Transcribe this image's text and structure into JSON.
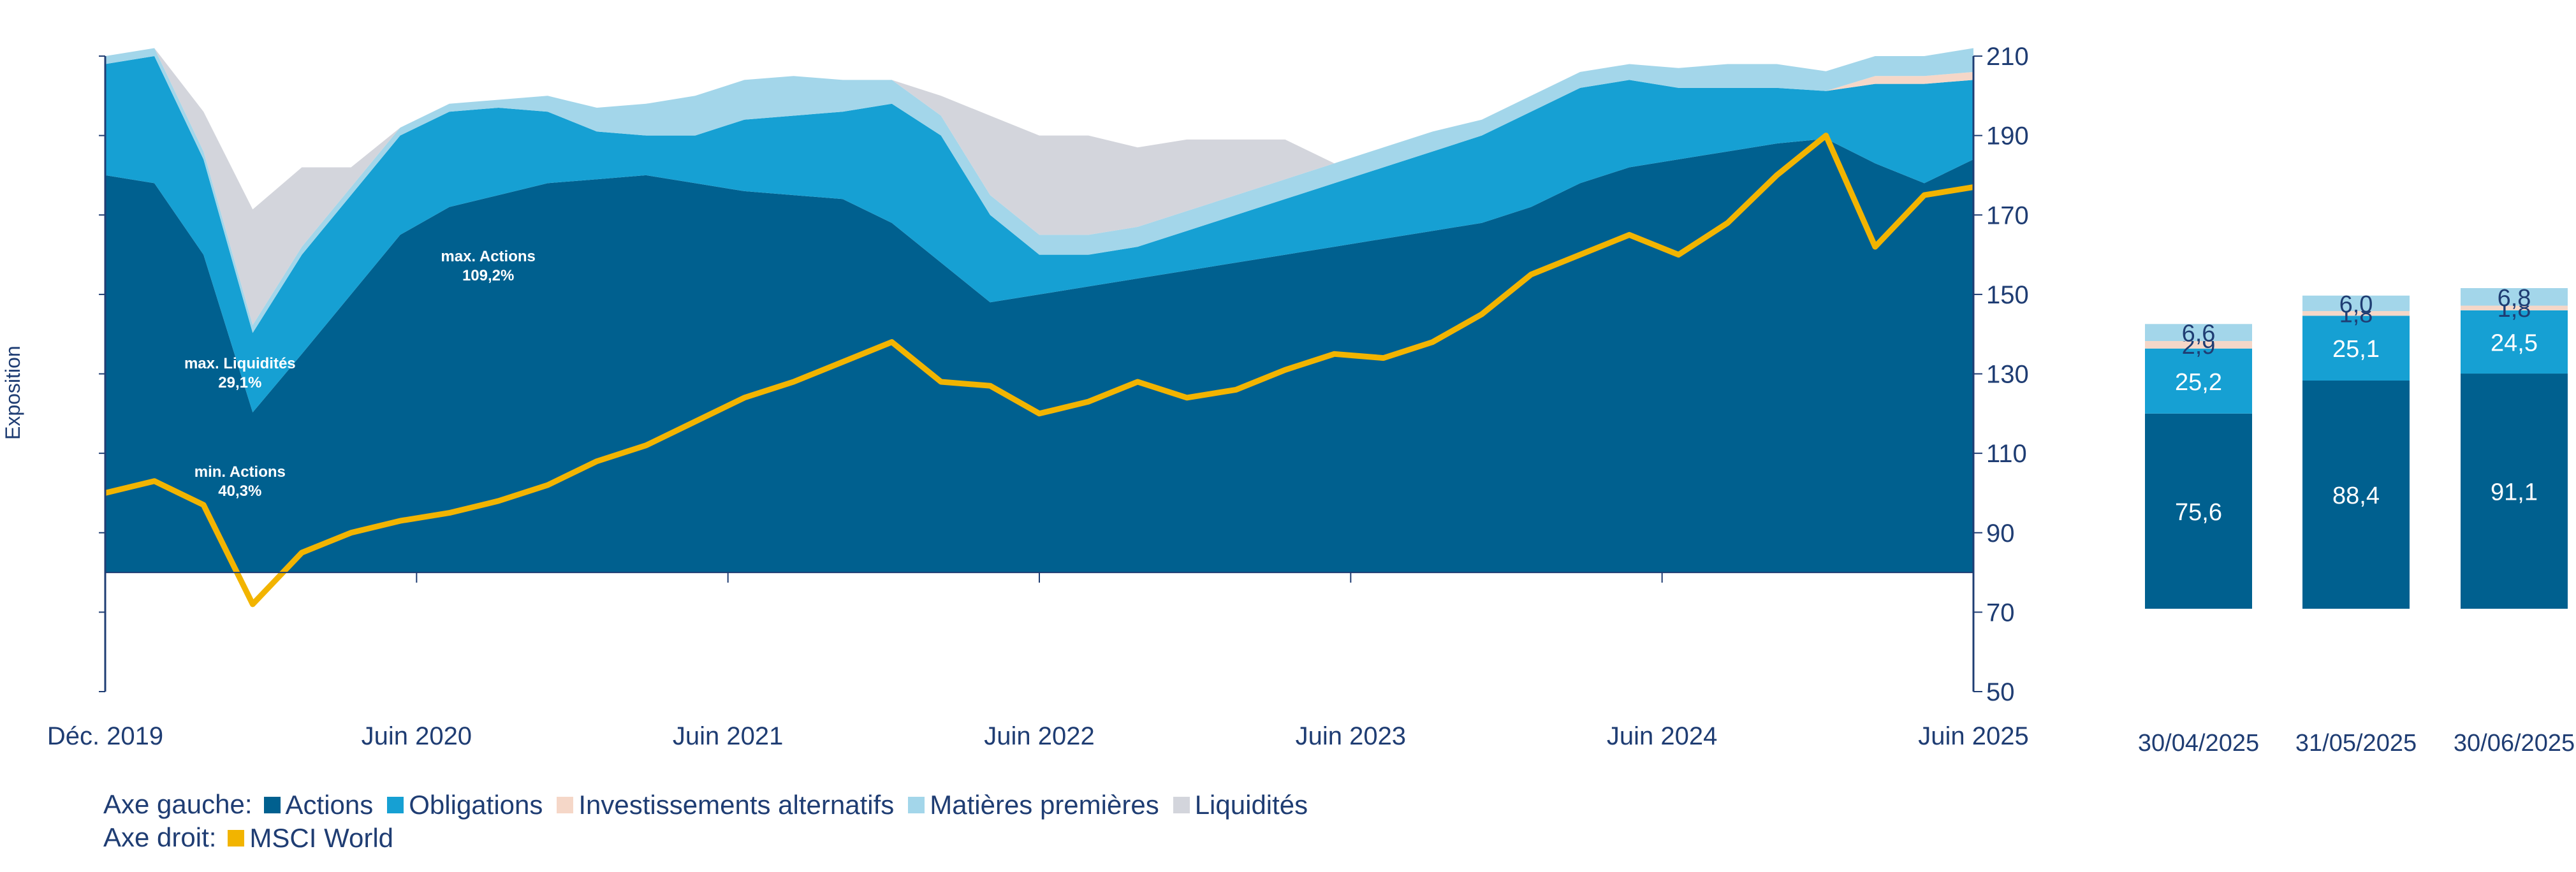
{
  "colors": {
    "actions": "#00608f",
    "obligations": "#16a0d3",
    "alternatifs": "#f5d7c8",
    "matieres": "#a3d6ea",
    "liquidites": "#d3d5dc",
    "msci": "#f2b400",
    "axis": "#1f3d73"
  },
  "chart_data": [
    {
      "type": "area",
      "title": "",
      "ylabel": "Exposition",
      "x_ticks": [
        "Déc. 2019",
        "Juin 2020",
        "Juin 2021",
        "Juin 2022",
        "Juin 2023",
        "Juin 2024",
        "Juin 2025"
      ],
      "x": [
        "2019-12",
        "2020-01",
        "2020-02",
        "2020-03",
        "2020-04",
        "2020-05",
        "2020-06",
        "2020-07",
        "2020-09",
        "2020-11",
        "2021-01",
        "2021-03",
        "2021-05",
        "2021-07",
        "2021-09",
        "2021-11",
        "2022-01",
        "2022-03",
        "2022-05",
        "2022-07",
        "2022-09",
        "2022-11",
        "2023-01",
        "2023-03",
        "2023-05",
        "2023-07",
        "2023-09",
        "2023-11",
        "2024-01",
        "2024-03",
        "2024-05",
        "2024-07",
        "2024-09",
        "2024-11",
        "2025-01",
        "2025-03",
        "2025-04",
        "2025-05",
        "2025-06"
      ],
      "series": [
        {
          "name": "Actions",
          "axis": "left",
          "values": [
            100,
            98,
            80,
            40.3,
            55,
            70,
            85,
            92,
            95,
            98,
            99,
            100,
            98,
            96,
            95,
            94,
            88,
            78,
            68,
            70,
            72,
            74,
            76,
            78,
            80,
            82,
            84,
            86,
            88,
            92,
            98,
            102,
            104,
            106,
            108,
            109.2,
            103,
            98,
            104
          ]
        },
        {
          "name": "Obligations",
          "axis": "left",
          "values": [
            28,
            32,
            24,
            20,
            25,
            25,
            25,
            24,
            22,
            18,
            12,
            10,
            12,
            18,
            20,
            22,
            30,
            32,
            22,
            10,
            8,
            8,
            10,
            12,
            14,
            16,
            18,
            20,
            22,
            24,
            24,
            22,
            18,
            16,
            14,
            12,
            20,
            25,
            20
          ]
        },
        {
          "name": "Investissements alternatifs",
          "axis": "left",
          "values": [
            0,
            0,
            0,
            0,
            0,
            0,
            0,
            0,
            0,
            0,
            0,
            0,
            0,
            0,
            0,
            0,
            0,
            0,
            0,
            0,
            0,
            0,
            0,
            0,
            0,
            0,
            0,
            0,
            0,
            0,
            0,
            0,
            0,
            0,
            0,
            0,
            2,
            2,
            2
          ]
        },
        {
          "name": "Matières premières",
          "axis": "left",
          "values": [
            2,
            2,
            2,
            2,
            2,
            2,
            2,
            2,
            2,
            4,
            6,
            8,
            10,
            10,
            10,
            8,
            6,
            5,
            5,
            5,
            5,
            5,
            5,
            5,
            5,
            5,
            5,
            5,
            4,
            4,
            4,
            4,
            5,
            6,
            6,
            5,
            5,
            5,
            6
          ]
        },
        {
          "name": "Liquidités",
          "axis": "left",
          "values": [
            0,
            0,
            10,
            29.1,
            20,
            5,
            0,
            0,
            0,
            0,
            0,
            0,
            0,
            0,
            0,
            0,
            0,
            5,
            20,
            25,
            25,
            20,
            18,
            14,
            10,
            0,
            0,
            0,
            0,
            0,
            0,
            0,
            0,
            0,
            0,
            0,
            0,
            0,
            0
          ]
        },
        {
          "name": "MSCI World",
          "axis": "right",
          "values": [
            100,
            103,
            97,
            72,
            85,
            90,
            93,
            95,
            98,
            102,
            108,
            112,
            118,
            124,
            128,
            133,
            138,
            128,
            127,
            120,
            123,
            128,
            124,
            126,
            131,
            135,
            134,
            138,
            145,
            155,
            160,
            165,
            160,
            168,
            180,
            190,
            162,
            175,
            177
          ]
        }
      ],
      "ylim_left": [
        -30,
        130
      ],
      "ylim_right": [
        50,
        210
      ],
      "y_ticks_right": [
        210,
        190,
        170,
        150,
        130,
        110,
        90,
        70,
        50
      ],
      "annotations": [
        {
          "title": "max. Actions",
          "value": "109,2%"
        },
        {
          "title": "max. Liquidités",
          "value": "29,1%"
        },
        {
          "title": "min. Actions",
          "value": "40,3%"
        }
      ]
    },
    {
      "type": "bar",
      "stacked": true,
      "categories": [
        "30/04/2025",
        "31/05/2025",
        "30/06/2025"
      ],
      "series": [
        {
          "name": "Actions",
          "values": [
            75.6,
            88.4,
            91.1
          ],
          "labels": [
            "75,6",
            "88,4",
            "91,1"
          ]
        },
        {
          "name": "Obligations",
          "values": [
            25.2,
            25.1,
            24.5
          ],
          "labels": [
            "25,2",
            "25,1",
            "24,5"
          ]
        },
        {
          "name": "Investissements alternatifs",
          "values": [
            2.9,
            1.8,
            1.8
          ],
          "labels": [
            "2,9",
            "1,8",
            "1,8"
          ]
        },
        {
          "name": "Matières premières",
          "values": [
            6.6,
            6.0,
            6.8
          ],
          "labels": [
            "6,6",
            "6,0",
            "6,8"
          ]
        }
      ],
      "ylim": [
        0,
        130
      ]
    }
  ],
  "legend": {
    "left_axis_label": "Axe gauche:",
    "right_axis_label": "Axe droit:",
    "left_items": [
      {
        "label": "Actions",
        "color": "#00608f"
      },
      {
        "label": "Obligations",
        "color": "#16a0d3"
      },
      {
        "label": "Investissements alternatifs",
        "color": "#f5d7c8"
      },
      {
        "label": "Matières premières",
        "color": "#a3d6ea"
      },
      {
        "label": "Liquidités",
        "color": "#d3d5dc"
      }
    ],
    "right_items": [
      {
        "label": "MSCI World",
        "color": "#f2b400"
      }
    ]
  }
}
